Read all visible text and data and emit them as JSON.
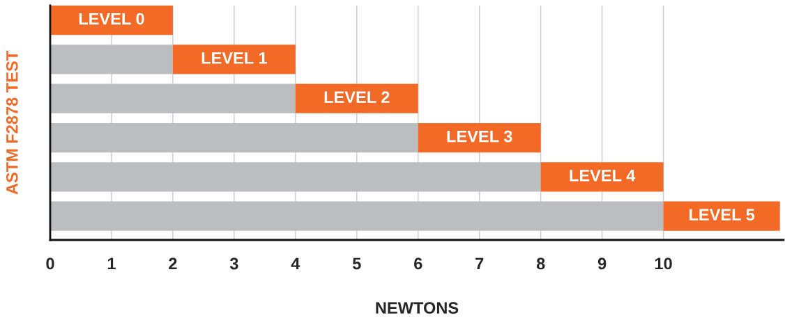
{
  "chart_data": {
    "type": "bar",
    "orientation": "horizontal",
    "stacked": true,
    "categories": [
      "LEVEL 0",
      "LEVEL 1",
      "LEVEL 2",
      "LEVEL 3",
      "LEVEL 4",
      "LEVEL 5"
    ],
    "series": [
      {
        "color": "#bcbdc0",
        "values": [
          0,
          2,
          4,
          6,
          8,
          10
        ]
      },
      {
        "color": "#f26a26",
        "values": [
          2,
          2,
          2,
          2,
          2,
          1.9
        ]
      }
    ],
    "xlabel": "NEWTONS",
    "ylabel": "ASTM F2878 TEST",
    "xlim": [
      0,
      11.96
    ],
    "xticks": [
      0,
      1,
      2,
      3,
      4,
      5,
      6,
      7,
      8,
      9,
      10
    ],
    "grid": "x",
    "legend": false,
    "tick_labels": "x"
  }
}
